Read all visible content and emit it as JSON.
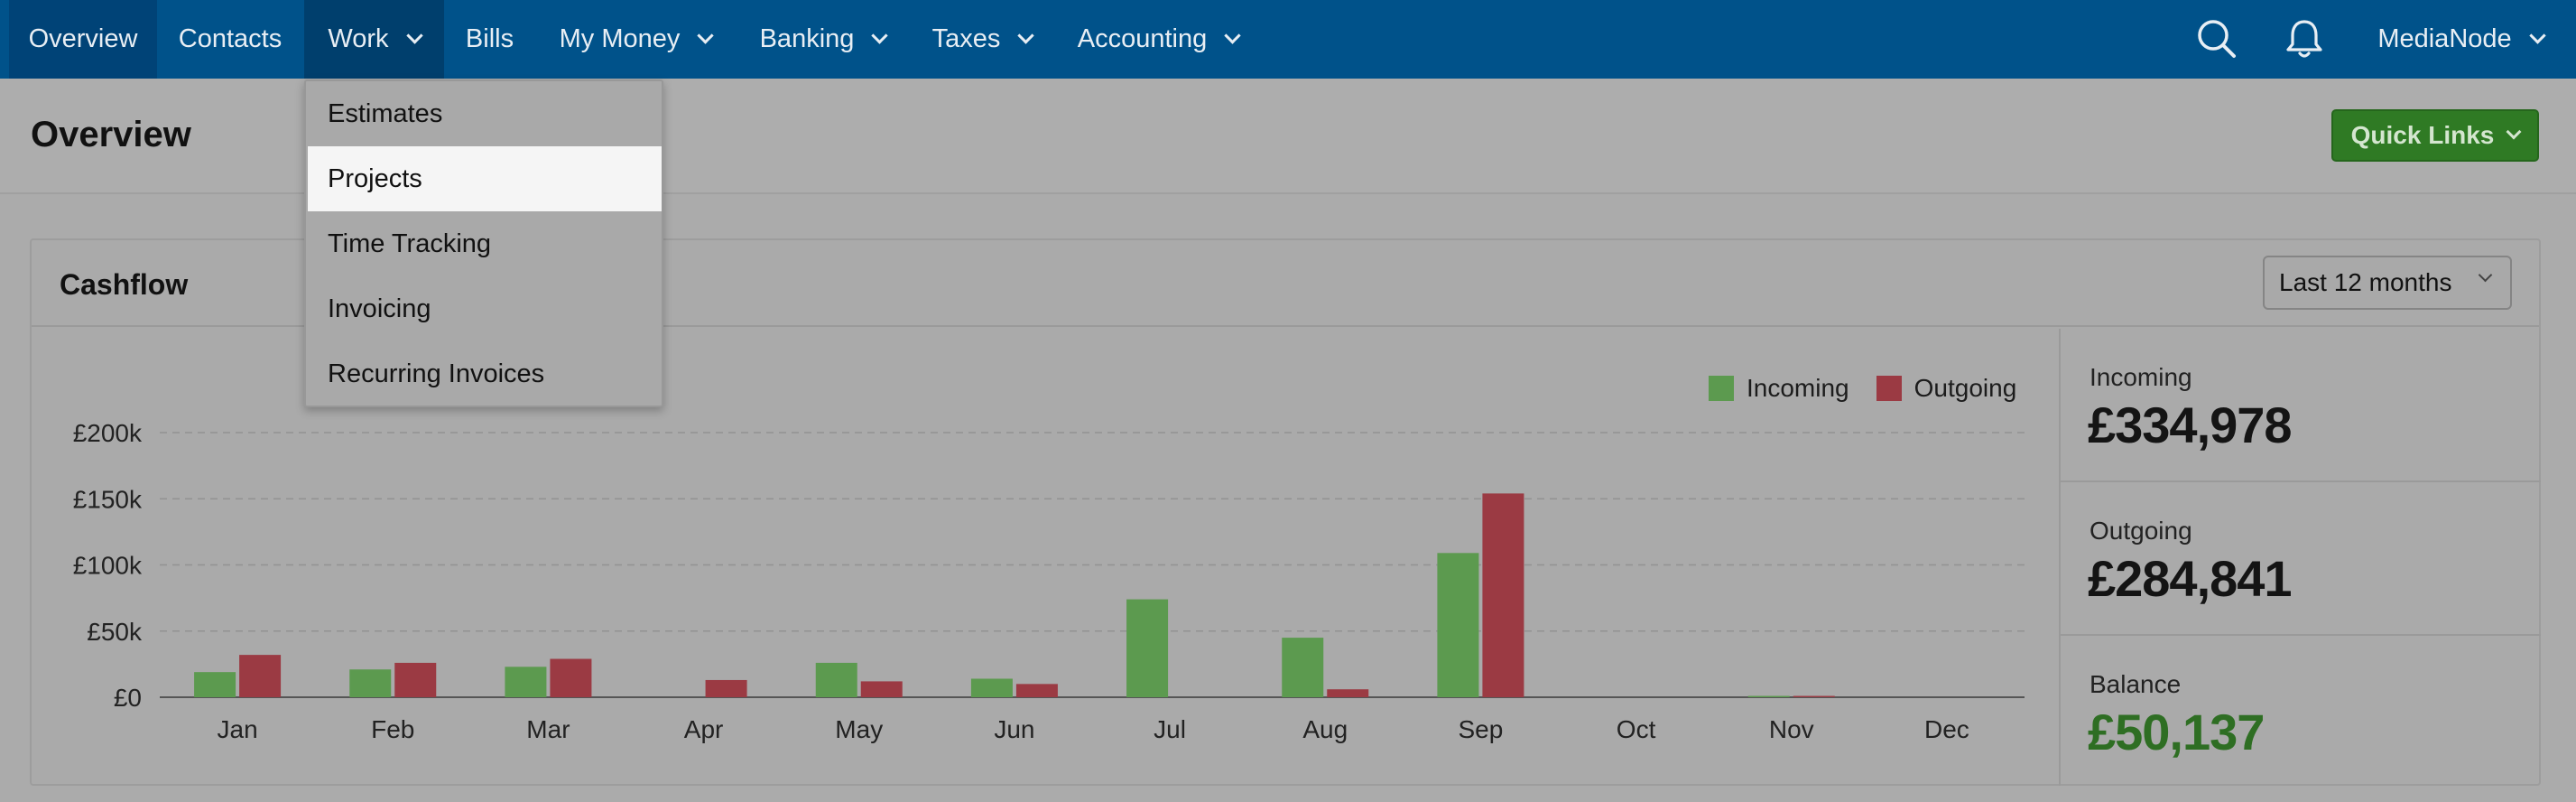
{
  "nav": {
    "items": [
      {
        "label": "Overview"
      },
      {
        "label": "Contacts"
      },
      {
        "label": "Work"
      },
      {
        "label": "Bills"
      },
      {
        "label": "My Money"
      },
      {
        "label": "Banking"
      },
      {
        "label": "Taxes"
      },
      {
        "label": "Accounting"
      }
    ],
    "account_label": "MediaNode",
    "icons": [
      "search-icon",
      "bell-icon"
    ]
  },
  "work_menu": {
    "items": [
      {
        "label": "Estimates"
      },
      {
        "label": "Projects"
      },
      {
        "label": "Time Tracking"
      },
      {
        "label": "Invoicing"
      },
      {
        "label": "Recurring Invoices"
      }
    ],
    "highlighted": "Projects"
  },
  "page": {
    "title": "Overview",
    "quick_links_label": "Quick Links"
  },
  "cashflow": {
    "title": "Cashflow",
    "range_selected": "Last 12 months",
    "stats": [
      {
        "label": "Incoming",
        "value": "£334,978"
      },
      {
        "label": "Outgoing",
        "value": "£284,841"
      },
      {
        "label": "Balance",
        "value": "£50,137"
      }
    ]
  },
  "chart_data": {
    "type": "bar",
    "categories": [
      "Jan",
      "Feb",
      "Mar",
      "Apr",
      "May",
      "Jun",
      "Jul",
      "Aug",
      "Sep",
      "Oct",
      "Nov",
      "Dec"
    ],
    "series": [
      {
        "name": "Incoming",
        "color": "#5c9a4f",
        "values": [
          19000,
          21000,
          23000,
          0,
          26000,
          14000,
          74000,
          45000,
          109000,
          0,
          1000,
          0
        ]
      },
      {
        "name": "Outgoing",
        "color": "#9b3a43",
        "values": [
          32000,
          26000,
          29000,
          13000,
          12000,
          10000,
          0,
          6000,
          154000,
          0,
          1000,
          0
        ]
      }
    ],
    "yticks": [
      "£0",
      "£50k",
      "£100k",
      "£150k",
      "£200k"
    ],
    "ylim": [
      0,
      200000
    ],
    "grid": true,
    "legend": "top-right"
  },
  "colors": {
    "nav_bg": "#00528a",
    "quick_links_bg": "#2f7a24",
    "balance_text": "#2e6e23"
  }
}
